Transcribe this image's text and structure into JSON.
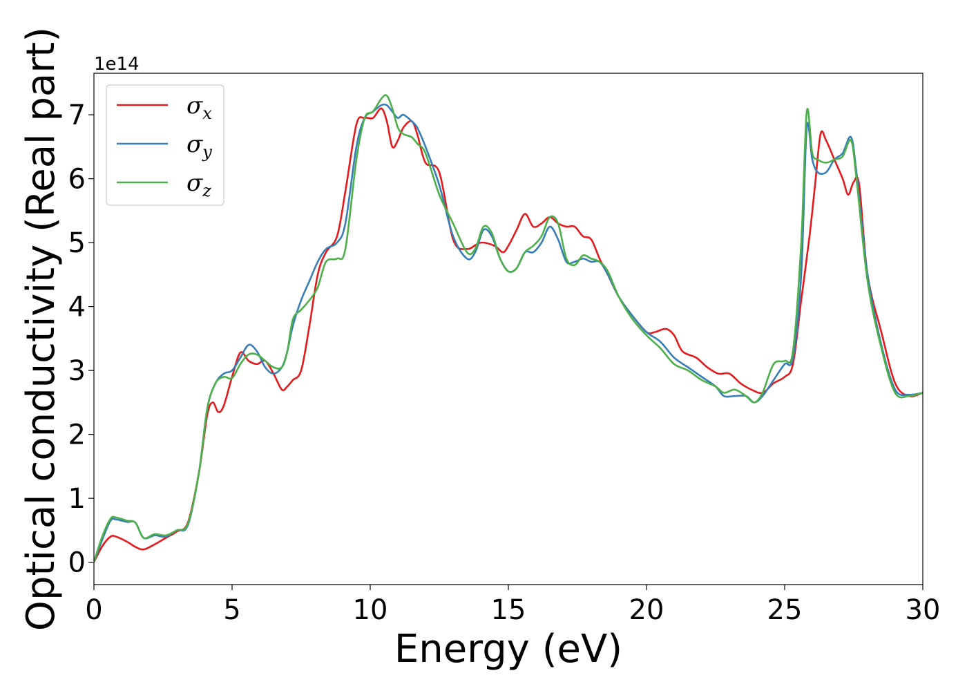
{
  "chart_data": {
    "type": "line",
    "xlabel": "Energy (eV)",
    "ylabel": "Optical conductivity (Real part)",
    "offset_text": "1e14",
    "scale": 100000000000000.0,
    "xlim": [
      0,
      30
    ],
    "ylim": [
      -0.35,
      7.65
    ],
    "xticks": [
      0,
      5,
      10,
      15,
      20,
      25,
      30
    ],
    "yticks": [
      0,
      1,
      2,
      3,
      4,
      5,
      6,
      7
    ],
    "grid": false,
    "legend_position": "top-left",
    "series": [
      {
        "name": "σx",
        "symbol": "σ",
        "sub": "x",
        "color": "#e41a1c",
        "x": [
          0,
          0.3,
          0.6,
          0.8,
          1.2,
          1.5,
          1.8,
          2.2,
          2.6,
          3.0,
          3.4,
          3.8,
          4.1,
          4.3,
          4.5,
          4.7,
          5.0,
          5.3,
          5.6,
          5.9,
          6.2,
          6.5,
          6.8,
          7.0,
          7.2,
          7.5,
          7.8,
          8.1,
          8.4,
          8.8,
          9.1,
          9.5,
          9.8,
          10.1,
          10.4,
          10.6,
          10.8,
          11.0,
          11.2,
          11.5,
          11.7,
          12.0,
          12.5,
          13.0,
          13.5,
          14.0,
          14.5,
          14.8,
          15.0,
          15.3,
          15.6,
          15.9,
          16.2,
          16.5,
          16.8,
          17.1,
          17.4,
          17.7,
          18.0,
          18.3,
          18.6,
          19.0,
          19.5,
          20.0,
          20.3,
          20.7,
          21.0,
          21.3,
          21.8,
          22.2,
          22.6,
          23.0,
          23.4,
          23.8,
          24.2,
          24.6,
          25.0,
          25.3,
          25.6,
          25.9,
          26.1,
          26.3,
          26.5,
          26.8,
          27.1,
          27.3,
          27.5,
          27.7,
          28.0,
          28.5,
          29.0,
          29.5,
          30
        ],
        "y": [
          0,
          0.25,
          0.4,
          0.4,
          0.32,
          0.24,
          0.2,
          0.28,
          0.38,
          0.48,
          0.62,
          1.4,
          2.3,
          2.5,
          2.35,
          2.45,
          2.9,
          3.28,
          3.15,
          3.1,
          3.15,
          2.95,
          2.7,
          2.75,
          2.85,
          3.0,
          3.7,
          4.5,
          4.85,
          5.1,
          5.8,
          6.85,
          6.95,
          6.95,
          7.1,
          6.9,
          6.5,
          6.6,
          6.8,
          6.9,
          6.7,
          6.25,
          6.1,
          5.05,
          4.9,
          5.0,
          4.95,
          4.85,
          4.95,
          5.2,
          5.45,
          5.25,
          5.3,
          5.4,
          5.3,
          5.25,
          5.25,
          5.1,
          5.05,
          4.75,
          4.5,
          4.15,
          3.85,
          3.6,
          3.6,
          3.65,
          3.55,
          3.3,
          3.2,
          3.05,
          2.95,
          2.95,
          2.8,
          2.7,
          2.65,
          2.8,
          2.9,
          3.1,
          4.1,
          5.1,
          5.9,
          6.7,
          6.6,
          6.3,
          6.0,
          5.75,
          5.95,
          5.9,
          4.5,
          3.6,
          2.8,
          2.6,
          2.65
        ]
      },
      {
        "name": "σy",
        "symbol": "σ",
        "sub": "y",
        "color": "#377eb8",
        "x": [
          0,
          0.3,
          0.6,
          0.8,
          1.2,
          1.5,
          1.8,
          2.2,
          2.6,
          3.0,
          3.4,
          3.8,
          4.1,
          4.4,
          4.7,
          5.0,
          5.3,
          5.6,
          5.9,
          6.2,
          6.5,
          6.8,
          7.0,
          7.2,
          7.5,
          7.8,
          8.1,
          8.4,
          8.8,
          9.1,
          9.5,
          9.8,
          10.1,
          10.4,
          10.6,
          10.8,
          11.0,
          11.2,
          11.5,
          11.7,
          12.0,
          12.5,
          13.0,
          13.5,
          13.8,
          14.1,
          14.4,
          14.7,
          15.0,
          15.3,
          15.6,
          15.9,
          16.2,
          16.5,
          16.8,
          17.1,
          17.4,
          17.7,
          18.0,
          18.3,
          18.6,
          19.0,
          19.5,
          20.0,
          20.5,
          21.0,
          21.5,
          22.0,
          22.5,
          22.8,
          23.2,
          23.6,
          23.9,
          24.2,
          24.6,
          25.0,
          25.3,
          25.6,
          25.8,
          26.0,
          26.2,
          26.5,
          26.8,
          27.1,
          27.4,
          27.6,
          28.0,
          28.5,
          29.0,
          29.5,
          30
        ],
        "y": [
          0,
          0.35,
          0.65,
          0.67,
          0.63,
          0.62,
          0.38,
          0.42,
          0.4,
          0.5,
          0.58,
          1.4,
          2.4,
          2.8,
          2.95,
          3.0,
          3.2,
          3.4,
          3.3,
          3.05,
          2.95,
          3.05,
          3.3,
          3.7,
          4.1,
          4.4,
          4.7,
          4.9,
          5.0,
          5.3,
          6.5,
          6.95,
          7.05,
          7.15,
          7.15,
          7.05,
          6.95,
          7.0,
          6.9,
          6.8,
          6.5,
          5.9,
          5.1,
          4.75,
          4.85,
          5.2,
          5.1,
          4.75,
          4.55,
          4.6,
          4.85,
          4.85,
          5.0,
          5.25,
          5.05,
          4.7,
          4.7,
          4.75,
          4.7,
          4.7,
          4.5,
          4.15,
          3.85,
          3.6,
          3.45,
          3.2,
          3.05,
          2.9,
          2.75,
          2.6,
          2.6,
          2.6,
          2.5,
          2.6,
          2.85,
          3.1,
          3.2,
          4.5,
          6.8,
          6.3,
          6.1,
          6.1,
          6.3,
          6.4,
          6.65,
          6.1,
          4.5,
          3.4,
          2.7,
          2.62,
          2.65
        ]
      },
      {
        "name": "σz",
        "symbol": "σ",
        "sub": "z",
        "color": "#4daf4a",
        "x": [
          0,
          0.3,
          0.6,
          0.8,
          1.2,
          1.5,
          1.8,
          2.2,
          2.6,
          3.0,
          3.4,
          3.8,
          4.1,
          4.4,
          4.7,
          5.0,
          5.3,
          5.6,
          5.9,
          6.2,
          6.5,
          6.8,
          7.0,
          7.2,
          7.5,
          7.8,
          8.1,
          8.4,
          8.8,
          9.1,
          9.5,
          9.8,
          10.1,
          10.4,
          10.6,
          10.8,
          11.0,
          11.2,
          11.5,
          11.7,
          12.0,
          12.5,
          13.0,
          13.5,
          13.8,
          14.1,
          14.4,
          14.7,
          15.0,
          15.3,
          15.6,
          15.9,
          16.2,
          16.5,
          16.8,
          17.1,
          17.4,
          17.7,
          18.0,
          18.3,
          18.6,
          19.0,
          19.5,
          20.0,
          20.5,
          21.0,
          21.5,
          22.0,
          22.5,
          22.8,
          23.2,
          23.6,
          23.9,
          24.2,
          24.6,
          25.0,
          25.3,
          25.6,
          25.8,
          26.0,
          26.2,
          26.5,
          26.8,
          27.1,
          27.4,
          27.6,
          28.0,
          28.5,
          29.0,
          29.5,
          30
        ],
        "y": [
          0,
          0.4,
          0.68,
          0.7,
          0.65,
          0.62,
          0.38,
          0.44,
          0.42,
          0.5,
          0.6,
          1.4,
          2.4,
          2.8,
          2.9,
          2.88,
          3.1,
          3.25,
          3.25,
          3.15,
          3.05,
          3.05,
          3.3,
          3.8,
          3.95,
          4.1,
          4.3,
          4.7,
          4.75,
          4.9,
          6.3,
          6.95,
          7.05,
          7.25,
          7.3,
          7.1,
          6.8,
          6.7,
          6.65,
          6.55,
          6.4,
          5.75,
          5.3,
          4.85,
          4.9,
          5.25,
          5.15,
          4.75,
          4.55,
          4.6,
          4.85,
          4.95,
          5.1,
          5.4,
          5.3,
          4.75,
          4.65,
          4.8,
          4.75,
          4.7,
          4.55,
          4.15,
          3.8,
          3.55,
          3.35,
          3.1,
          3.0,
          2.85,
          2.75,
          2.65,
          2.7,
          2.6,
          2.5,
          2.65,
          3.1,
          3.15,
          3.3,
          5.0,
          7.05,
          6.4,
          6.3,
          6.25,
          6.3,
          6.35,
          6.6,
          6.0,
          4.4,
          3.35,
          2.65,
          2.6,
          2.65
        ]
      }
    ]
  }
}
